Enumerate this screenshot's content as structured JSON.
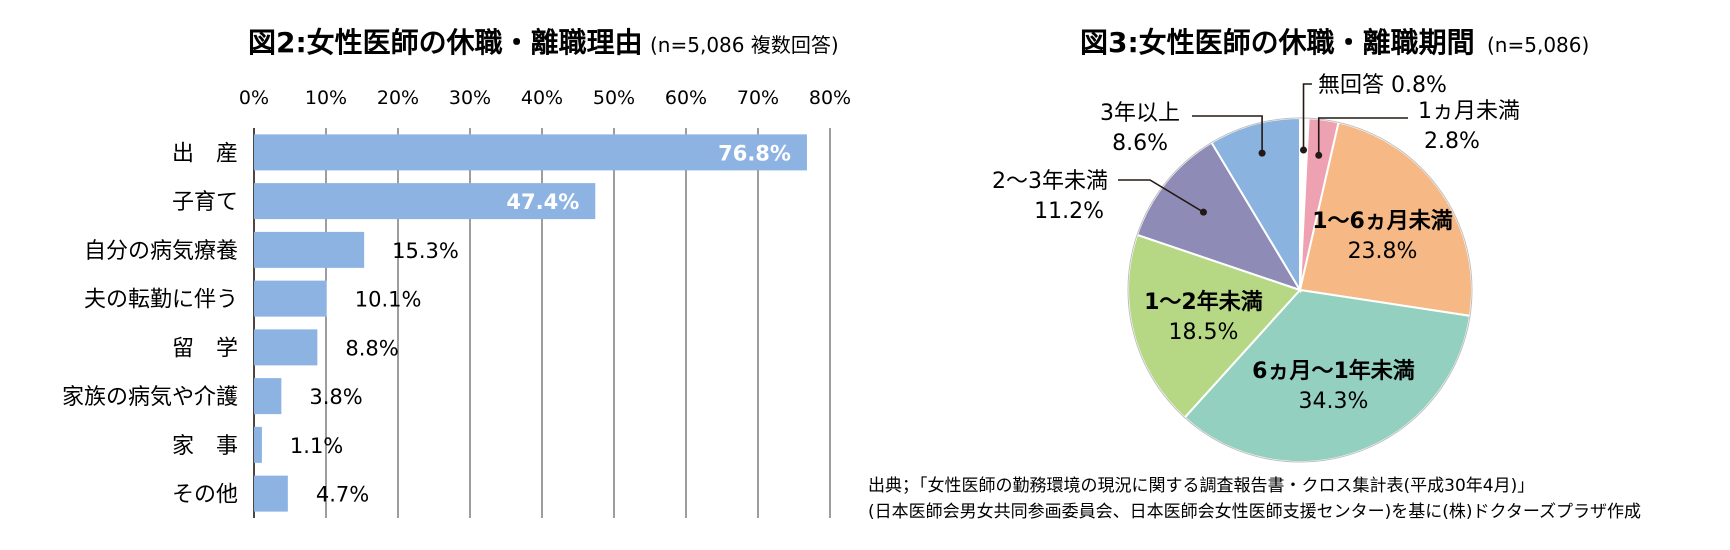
{
  "chart_data": [
    {
      "type": "bar",
      "orientation": "horizontal",
      "title": "図2:女性医師の休職・離職理由",
      "subtitle": "(n=5,086 複数回答)",
      "categories": [
        "出　産",
        "子育て",
        "自分の病気療養",
        "夫の転勤に伴う",
        "留　学",
        "家族の病気や介護",
        "家　事",
        "その他"
      ],
      "values": [
        76.8,
        47.4,
        15.3,
        10.1,
        8.8,
        3.8,
        1.1,
        4.7
      ],
      "value_labels": [
        "76.8%",
        "47.4%",
        "15.3%",
        "10.1%",
        "8.8%",
        "3.8%",
        "1.1%",
        "4.7%"
      ],
      "xlim": [
        0,
        80
      ],
      "x_ticks": [
        "0%",
        "10%",
        "20%",
        "30%",
        "40%",
        "50%",
        "60%",
        "70%",
        "80%"
      ],
      "grid": true,
      "bar_color": "#8db3e2"
    },
    {
      "type": "pie",
      "title": "図3:女性医師の休職・離職期間",
      "subtitle": "(n=5,086)",
      "slices": [
        {
          "label": "無回答",
          "value": 0.8,
          "value_label": "0.8%",
          "color": "#ffffff"
        },
        {
          "label": "1ヵ月未満",
          "value": 2.8,
          "value_label": "2.8%",
          "color": "#eda1b1"
        },
        {
          "label": "1〜6ヵ月未満",
          "value": 23.8,
          "value_label": "23.8%",
          "color": "#f6b985"
        },
        {
          "label": "6ヵ月〜1年未満",
          "value": 34.3,
          "value_label": "34.3%",
          "color": "#93d0c0"
        },
        {
          "label": "1〜2年未満",
          "value": 18.5,
          "value_label": "18.5%",
          "color": "#b6d884"
        },
        {
          "label": "2〜3年未満",
          "value": 11.2,
          "value_label": "11.2%",
          "color": "#8f8bb7"
        },
        {
          "label": "3年以上",
          "value": 8.6,
          "value_label": "8.6%",
          "color": "#8ab3e0"
        }
      ]
    }
  ],
  "source": {
    "line1": "出典；「女性医師の勤務環境の現況に関する調査報告書・クロス集計表(平成30年4月)」",
    "line2": "(日本医師会男女共同参画委員会、日本医師会女性医師支援センター)を基に(株)ドクターズプラザ作成"
  }
}
